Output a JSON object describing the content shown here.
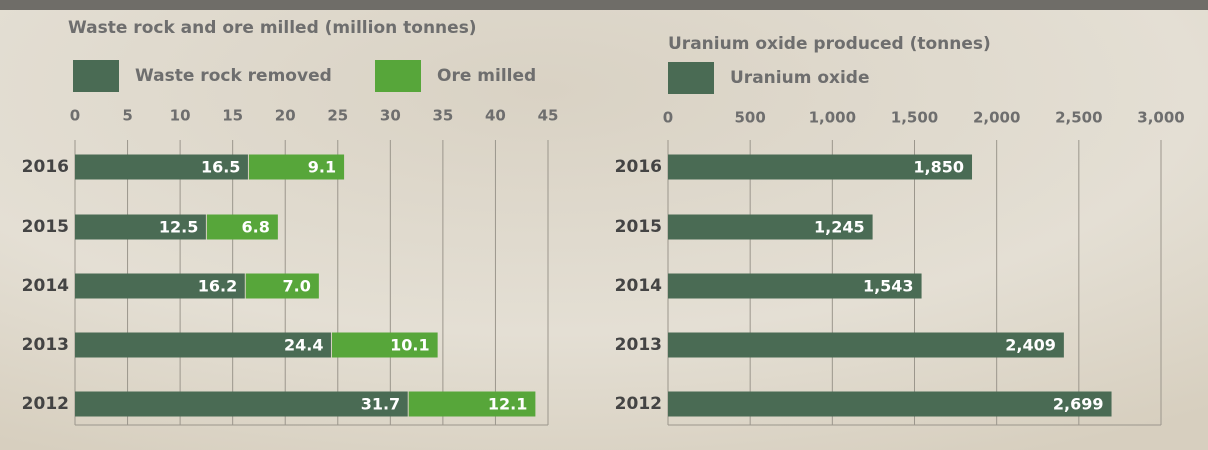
{
  "chart_data": [
    {
      "type": "bar",
      "orientation": "horizontal",
      "stacked": true,
      "title": "Waste rock and ore milled (million tonnes)",
      "categories": [
        "2016",
        "2015",
        "2014",
        "2013",
        "2012"
      ],
      "series": [
        {
          "name": "Waste rock removed",
          "color": "#4a6b54",
          "values": [
            16.5,
            12.5,
            16.2,
            24.4,
            31.7
          ]
        },
        {
          "name": "Ore milled",
          "color": "#57a63a",
          "values": [
            9.1,
            6.8,
            7.0,
            10.1,
            12.1
          ],
          "value_labels": [
            "9.1",
            "6.8",
            "7.0",
            "10.1",
            "12.1"
          ]
        }
      ],
      "xlim": [
        0,
        45
      ],
      "xticks": [
        0,
        5,
        10,
        15,
        20,
        25,
        30,
        35,
        40,
        45
      ],
      "grid": true
    },
    {
      "type": "bar",
      "orientation": "horizontal",
      "stacked": false,
      "title": "Uranium oxide produced (tonnes)",
      "categories": [
        "2016",
        "2015",
        "2014",
        "2013",
        "2012"
      ],
      "series": [
        {
          "name": "Uranium oxide",
          "color": "#4a6b54",
          "values": [
            1850,
            1245,
            1543,
            2409,
            2699
          ],
          "value_labels": [
            "1,850",
            "1,245",
            "1,543",
            "2,409",
            "2,699"
          ]
        }
      ],
      "xlim": [
        0,
        3000
      ],
      "xticks": [
        0,
        500,
        {
          "value": 1000,
          "label": "1,000"
        },
        {
          "value": 1500,
          "label": "1,500"
        },
        {
          "value": 2000,
          "label": "2,000"
        },
        {
          "value": 2500,
          "label": "2,500"
        },
        {
          "value": 3000,
          "label": "3,000"
        }
      ],
      "grid": true
    }
  ]
}
